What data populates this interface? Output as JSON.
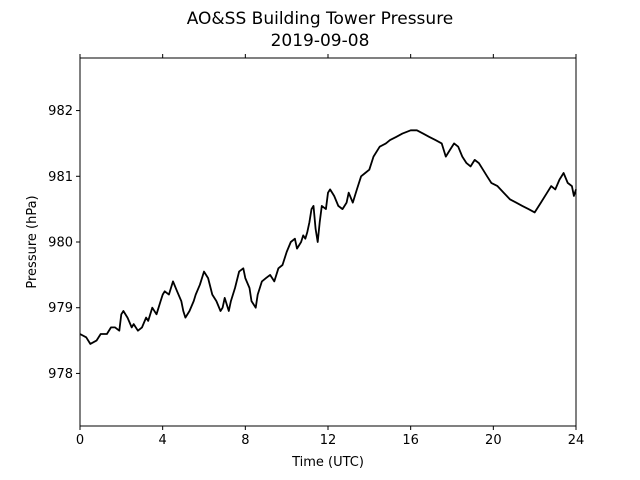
{
  "chart_data": {
    "type": "line",
    "title": "AO&SS Building Tower Pressure",
    "subtitle": "2019-09-08",
    "xlabel": "Time (UTC)",
    "ylabel": "Pressure (hPa)",
    "xlim": [
      0,
      24
    ],
    "ylim": [
      977.2,
      982.8
    ],
    "xticks": [
      0,
      4,
      8,
      12,
      16,
      20,
      24
    ],
    "yticks": [
      978,
      979,
      980,
      981,
      982
    ],
    "grid": false,
    "legend": "none",
    "series": [
      {
        "color": "#000000",
        "x": [
          0,
          0.3,
          0.5,
          0.8,
          1.0,
          1.3,
          1.5,
          1.7,
          1.9,
          2.0,
          2.1,
          2.3,
          2.5,
          2.6,
          2.8,
          3.0,
          3.2,
          3.3,
          3.5,
          3.7,
          3.9,
          4.0,
          4.1,
          4.3,
          4.5,
          4.7,
          4.9,
          5.0,
          5.1,
          5.3,
          5.5,
          5.6,
          5.8,
          6.0,
          6.2,
          6.4,
          6.6,
          6.8,
          6.9,
          7.0,
          7.2,
          7.3,
          7.5,
          7.7,
          7.9,
          8.0,
          8.2,
          8.3,
          8.5,
          8.6,
          8.8,
          9.0,
          9.2,
          9.4,
          9.6,
          9.8,
          10.0,
          10.2,
          10.4,
          10.5,
          10.7,
          10.8,
          10.9,
          11.0,
          11.1,
          11.2,
          11.3,
          11.4,
          11.5,
          11.6,
          11.7,
          11.9,
          12.0,
          12.1,
          12.3,
          12.5,
          12.7,
          12.9,
          13.0,
          13.2,
          13.4,
          13.6,
          13.8,
          14.0,
          14.2,
          14.5,
          14.8,
          15.0,
          15.3,
          15.6,
          16.0,
          16.3,
          16.6,
          16.9,
          17.2,
          17.5,
          17.7,
          17.9,
          18.1,
          18.3,
          18.5,
          18.7,
          18.9,
          19.1,
          19.3,
          19.5,
          19.7,
          19.9,
          20.2,
          20.5,
          20.8,
          21.1,
          21.4,
          21.7,
          22.0,
          22.3,
          22.6,
          22.8,
          23.0,
          23.2,
          23.4,
          23.6,
          23.8,
          23.9,
          24.0
        ],
        "values": [
          978.6,
          978.55,
          978.45,
          978.5,
          978.6,
          978.6,
          978.7,
          978.7,
          978.65,
          978.9,
          978.95,
          978.85,
          978.7,
          978.75,
          978.65,
          978.7,
          978.85,
          978.8,
          979.0,
          978.9,
          979.1,
          979.2,
          979.25,
          979.2,
          979.4,
          979.25,
          979.1,
          978.95,
          978.85,
          978.95,
          979.1,
          979.2,
          979.35,
          979.55,
          979.45,
          979.2,
          979.1,
          978.95,
          979.0,
          979.15,
          978.95,
          979.1,
          979.3,
          979.55,
          979.6,
          979.45,
          979.3,
          979.1,
          979.0,
          979.2,
          979.4,
          979.45,
          979.5,
          979.4,
          979.6,
          979.65,
          979.85,
          980.0,
          980.05,
          979.9,
          980.0,
          980.1,
          980.05,
          980.15,
          980.3,
          980.5,
          980.55,
          980.2,
          980.0,
          980.3,
          980.55,
          980.5,
          980.75,
          980.8,
          980.7,
          980.55,
          980.5,
          980.6,
          980.75,
          980.6,
          980.8,
          981.0,
          981.05,
          981.1,
          981.3,
          981.45,
          981.5,
          981.55,
          981.6,
          981.65,
          981.7,
          981.7,
          981.65,
          981.6,
          981.55,
          981.5,
          981.3,
          981.4,
          981.5,
          981.45,
          981.3,
          981.2,
          981.15,
          981.25,
          981.2,
          981.1,
          981.0,
          980.9,
          980.85,
          980.75,
          980.65,
          980.6,
          980.55,
          980.5,
          980.45,
          980.6,
          980.75,
          980.85,
          980.8,
          980.95,
          981.05,
          980.9,
          980.85,
          980.7,
          980.8
        ]
      }
    ]
  }
}
